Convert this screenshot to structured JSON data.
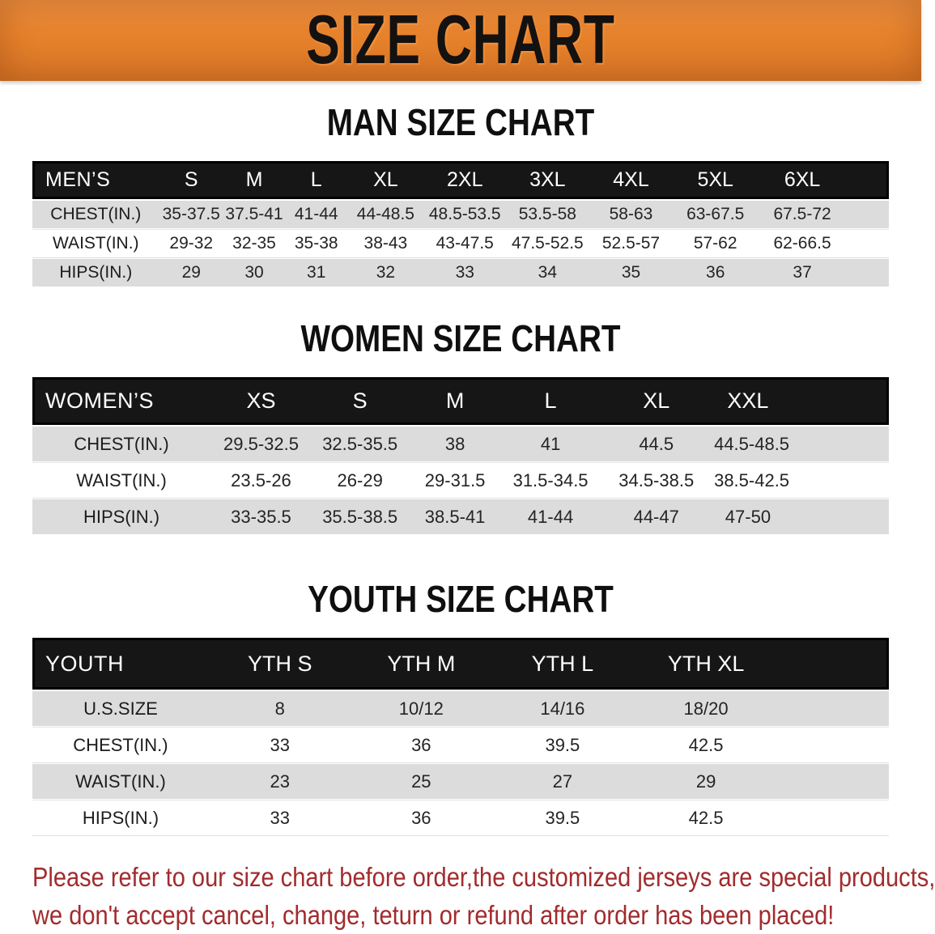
{
  "banner": {
    "title": "SIZE CHART",
    "bg_color": "#e8832c",
    "text_color": "#141111"
  },
  "sections": [
    {
      "heading": "MAN SIZE CHART",
      "header_label": "MEN’S",
      "size_columns": [
        "S",
        "M",
        "L",
        "XL",
        "2XL",
        "3XL",
        "4XL",
        "5XL",
        "6XL"
      ],
      "rows": [
        {
          "label": "CHEST(IN.)",
          "values": [
            "35-37.5",
            "37.5-41",
            "41-44",
            "44-48.5",
            "48.5-53.5",
            "53.5-58",
            "58-63",
            "63-67.5",
            "67.5-72"
          ]
        },
        {
          "label": "WAIST(IN.)",
          "values": [
            "29-32",
            "32-35",
            "35-38",
            "38-43",
            "43-47.5",
            "47.5-52.5",
            "52.5-57",
            "57-62",
            "62-66.5"
          ]
        },
        {
          "label": "HIPS(IN.)",
          "values": [
            "29",
            "30",
            "31",
            "32",
            "33",
            "34",
            "35",
            "36",
            "37"
          ]
        }
      ]
    },
    {
      "heading": "WOMEN SIZE CHART",
      "header_label": "WOMEN’S",
      "size_columns": [
        "XS",
        "S",
        "M",
        "L",
        "XL",
        "XXL"
      ],
      "rows": [
        {
          "label": "CHEST(IN.)",
          "values": [
            "29.5-32.5",
            "32.5-35.5",
            "38",
            "41",
            "44.5",
            "44.5-48.5"
          ]
        },
        {
          "label": "WAIST(IN.)",
          "values": [
            "23.5-26",
            "26-29",
            "29-31.5",
            "31.5-34.5",
            "34.5-38.5",
            "38.5-42.5"
          ]
        },
        {
          "label": "HIPS(IN.)",
          "values": [
            "33-35.5",
            "35.5-38.5",
            "38.5-41",
            "41-44",
            "44-47",
            "47-50"
          ]
        }
      ]
    },
    {
      "heading": "YOUTH SIZE CHART",
      "header_label": "YOUTH",
      "size_columns": [
        "YTH S",
        "YTH M",
        "YTH L",
        "YTH XL"
      ],
      "rows": [
        {
          "label": "U.S.SIZE",
          "values": [
            "8",
            "10/12",
            "14/16",
            "18/20"
          ]
        },
        {
          "label": "CHEST(IN.)",
          "values": [
            "33",
            "36",
            "39.5",
            "42.5"
          ]
        },
        {
          "label": "WAIST(IN.)",
          "values": [
            "23",
            "25",
            "27",
            "29"
          ]
        },
        {
          "label": "HIPS(IN.)",
          "values": [
            "33",
            "36",
            "39.5",
            "42.5"
          ]
        }
      ]
    }
  ],
  "footer": {
    "line1": "Please refer to our size chart before order,the customized jerseys are special products,",
    "line2": "we don't accept cancel, change, teturn or refund after order has been placed!",
    "text_color": "#a22b2d"
  }
}
